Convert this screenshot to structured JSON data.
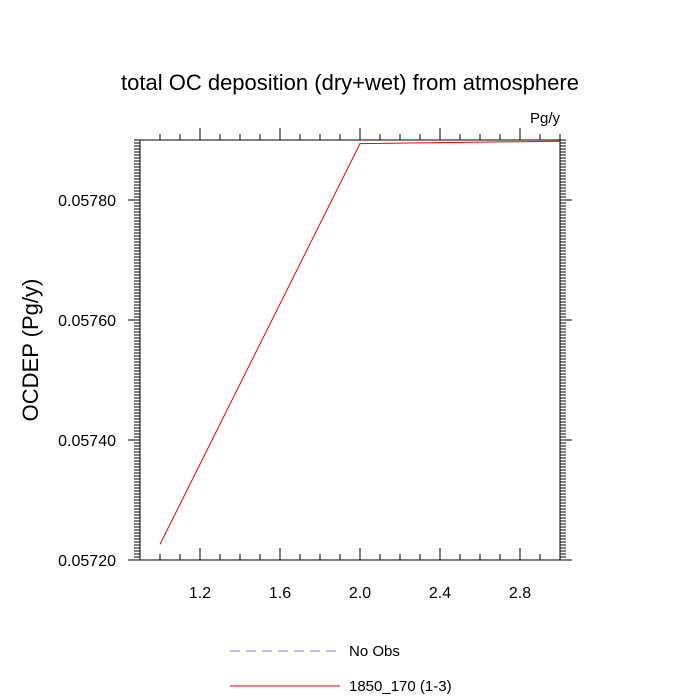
{
  "chart_data": {
    "type": "line",
    "title": "total OC deposition (dry+wet) from atmosphere",
    "units_label": "Pg/y",
    "xlabel": "",
    "ylabel": "OCDEP  (Pg/y)",
    "xlim": [
      0.9,
      3.0
    ],
    "ylim": [
      0.0572,
      0.0579
    ],
    "x_ticks": [
      1.2,
      1.6,
      2.0,
      2.4,
      2.8
    ],
    "x_tick_labels": [
      "1.2",
      "1.6",
      "2.0",
      "2.4",
      "2.8"
    ],
    "y_ticks": [
      0.0572,
      0.0574,
      0.0576,
      0.0578
    ],
    "y_tick_labels": [
      "0.05720",
      "0.05740",
      "0.05760",
      "0.05780"
    ],
    "grid": false,
    "legend_position": "bottom-center",
    "series": [
      {
        "name": "No Obs",
        "x": [],
        "y": [],
        "color": "#8080ff",
        "dash": "dashed"
      },
      {
        "name": "1850_170 (1-3)",
        "x": [
          1.0,
          2.0,
          3.0
        ],
        "y": [
          0.057226,
          0.057894,
          0.057898
        ],
        "color": "#ff0000",
        "dash": "solid"
      }
    ]
  }
}
